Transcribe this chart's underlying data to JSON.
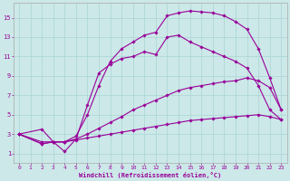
{
  "xlabel": "Windchill (Refroidissement éolien,°C)",
  "bg_color": "#cce8e8",
  "grid_color": "#aad4d4",
  "line_color": "#990099",
  "spine_color": "#aaaaaa",
  "xlim": [
    -0.5,
    23.5
  ],
  "ylim": [
    0,
    16.5
  ],
  "xticks": [
    0,
    1,
    2,
    3,
    4,
    5,
    6,
    7,
    8,
    9,
    10,
    11,
    12,
    13,
    14,
    15,
    16,
    17,
    18,
    19,
    20,
    21,
    22,
    23
  ],
  "yticks": [
    1,
    3,
    5,
    7,
    9,
    11,
    13,
    15
  ],
  "curve_top_x": [
    0,
    2,
    3,
    4,
    5,
    6,
    7,
    8,
    9,
    10,
    11,
    12,
    13,
    14,
    15,
    16,
    17,
    18,
    19,
    20,
    21,
    22,
    23
  ],
  "curve_top_y": [
    3.0,
    3.5,
    2.2,
    2.2,
    2.8,
    5.0,
    8.0,
    10.5,
    11.8,
    12.5,
    13.2,
    13.5,
    15.2,
    15.5,
    15.7,
    15.6,
    15.5,
    15.2,
    14.6,
    13.8,
    11.8,
    8.8,
    5.5
  ],
  "curve2_x": [
    0,
    2,
    3,
    4,
    5,
    6,
    7,
    8,
    9,
    10,
    11,
    12,
    13,
    14,
    15,
    16,
    17,
    18,
    19,
    20,
    21,
    22,
    23
  ],
  "curve2_y": [
    3.0,
    2.2,
    2.2,
    1.2,
    2.5,
    6.0,
    9.3,
    10.2,
    10.8,
    11.0,
    11.5,
    11.2,
    13.0,
    13.2,
    12.5,
    12.0,
    11.5,
    11.0,
    10.5,
    9.8,
    8.0,
    5.5,
    4.5
  ],
  "curve3_x": [
    0,
    2,
    3,
    4,
    5,
    6,
    7,
    8,
    9,
    10,
    11,
    12,
    13,
    14,
    15,
    16,
    17,
    18,
    19,
    20,
    21,
    22,
    23
  ],
  "curve3_y": [
    3.0,
    2.0,
    2.2,
    2.2,
    2.5,
    3.0,
    3.6,
    4.2,
    4.8,
    5.5,
    6.0,
    6.5,
    7.0,
    7.5,
    7.8,
    8.0,
    8.2,
    8.4,
    8.5,
    8.8,
    8.5,
    7.8,
    5.5
  ],
  "curve_bot_x": [
    0,
    2,
    3,
    4,
    5,
    6,
    7,
    8,
    9,
    10,
    11,
    12,
    13,
    14,
    15,
    16,
    17,
    18,
    19,
    20,
    21,
    22,
    23
  ],
  "curve_bot_y": [
    3.0,
    2.0,
    2.2,
    2.2,
    2.4,
    2.6,
    2.8,
    3.0,
    3.2,
    3.4,
    3.6,
    3.8,
    4.0,
    4.2,
    4.4,
    4.5,
    4.6,
    4.7,
    4.8,
    4.9,
    5.0,
    4.8,
    4.5
  ]
}
